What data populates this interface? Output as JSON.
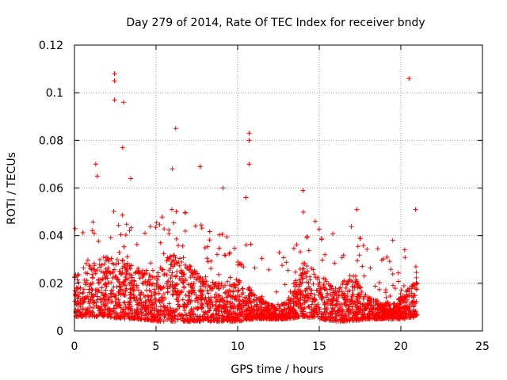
{
  "chart_data": {
    "type": "scatter",
    "title": "Day 279 of 2014, Rate Of TEC Index for receiver bndy",
    "xlabel": "GPS time / hours",
    "ylabel": "ROTI / TECUs",
    "xlim": [
      0,
      25
    ],
    "ylim": [
      0,
      0.12
    ],
    "xticks": [
      0,
      5,
      10,
      15,
      20,
      25
    ],
    "xtick_labels": [
      "0",
      "5",
      "10",
      "15",
      "20",
      "25"
    ],
    "yticks": [
      0,
      0.02,
      0.04,
      0.06,
      0.08,
      0.1,
      0.12
    ],
    "ytick_labels": [
      "0",
      "0.02",
      "0.04",
      "0.06",
      "0.08",
      "0.1",
      "0.12"
    ],
    "grid": true,
    "marker": "+",
    "color": "#ff0000",
    "series": [
      {
        "name": "ROTI",
        "notable_points": [
          {
            "x": 2.45,
            "y": 0.108
          },
          {
            "x": 2.45,
            "y": 0.105
          },
          {
            "x": 2.45,
            "y": 0.097
          },
          {
            "x": 3.0,
            "y": 0.096
          },
          {
            "x": 6.2,
            "y": 0.085
          },
          {
            "x": 20.5,
            "y": 0.106
          },
          {
            "x": 10.7,
            "y": 0.083
          },
          {
            "x": 10.7,
            "y": 0.08
          },
          {
            "x": 2.95,
            "y": 0.077
          },
          {
            "x": 1.3,
            "y": 0.07
          },
          {
            "x": 7.7,
            "y": 0.069
          },
          {
            "x": 10.7,
            "y": 0.07
          },
          {
            "x": 9.1,
            "y": 0.06
          },
          {
            "x": 14.0,
            "y": 0.059
          },
          {
            "x": 3.45,
            "y": 0.064
          },
          {
            "x": 6.0,
            "y": 0.068
          },
          {
            "x": 1.4,
            "y": 0.065
          },
          {
            "x": 20.9,
            "y": 0.051
          },
          {
            "x": 17.3,
            "y": 0.051
          },
          {
            "x": 10.5,
            "y": 0.056
          },
          {
            "x": 19.5,
            "y": 0.038
          }
        ],
        "profile": [
          {
            "x": 0.0,
            "low": 0.006,
            "high": 0.024
          },
          {
            "x": 1.0,
            "low": 0.006,
            "high": 0.03
          },
          {
            "x": 2.0,
            "low": 0.006,
            "high": 0.032
          },
          {
            "x": 3.0,
            "low": 0.005,
            "high": 0.03
          },
          {
            "x": 4.0,
            "low": 0.005,
            "high": 0.026
          },
          {
            "x": 5.0,
            "low": 0.004,
            "high": 0.024
          },
          {
            "x": 6.0,
            "low": 0.004,
            "high": 0.034
          },
          {
            "x": 7.0,
            "low": 0.004,
            "high": 0.028
          },
          {
            "x": 8.0,
            "low": 0.004,
            "high": 0.022
          },
          {
            "x": 9.0,
            "low": 0.004,
            "high": 0.02
          },
          {
            "x": 10.0,
            "low": 0.004,
            "high": 0.022
          },
          {
            "x": 11.0,
            "low": 0.005,
            "high": 0.016
          },
          {
            "x": 12.0,
            "low": 0.005,
            "high": 0.011
          },
          {
            "x": 13.0,
            "low": 0.005,
            "high": 0.012
          },
          {
            "x": 14.0,
            "low": 0.006,
            "high": 0.03
          },
          {
            "x": 15.0,
            "low": 0.005,
            "high": 0.024
          },
          {
            "x": 16.0,
            "low": 0.004,
            "high": 0.018
          },
          {
            "x": 17.0,
            "low": 0.004,
            "high": 0.024
          },
          {
            "x": 18.0,
            "low": 0.005,
            "high": 0.014
          },
          {
            "x": 19.0,
            "low": 0.005,
            "high": 0.012
          },
          {
            "x": 20.0,
            "low": 0.005,
            "high": 0.014
          },
          {
            "x": 21.0,
            "low": 0.006,
            "high": 0.024
          }
        ],
        "x_range": [
          0,
          21.0
        ]
      }
    ]
  }
}
